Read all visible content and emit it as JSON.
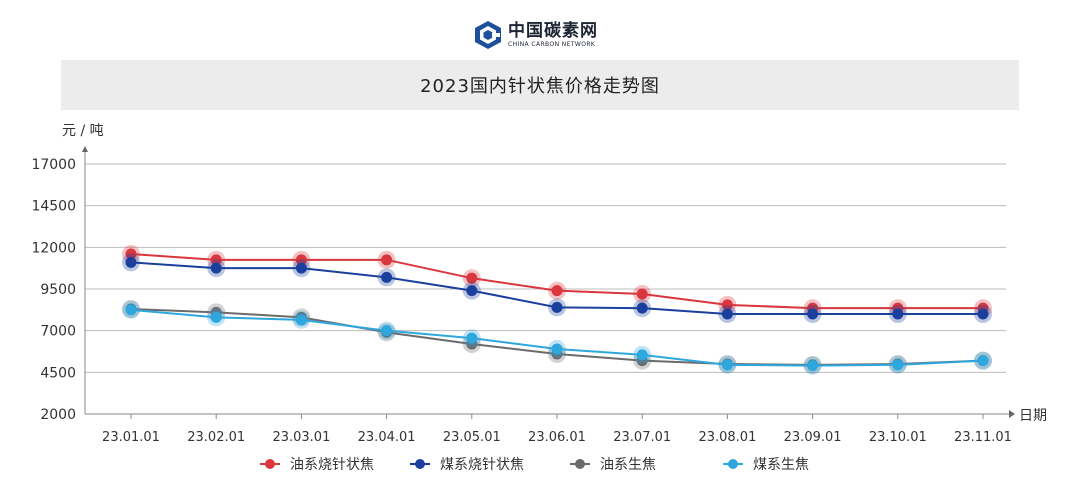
{
  "logo": {
    "name_cn": "中国碳素网",
    "name_en": "CHINA CARBON NETWORK"
  },
  "chart_data": {
    "type": "line",
    "title": "2023国内针状焦价格走势图",
    "ylabel": "元 / 吨",
    "xlabel": "日期",
    "ylim": [
      2000,
      17000
    ],
    "yticks": [
      2000,
      4500,
      7000,
      9500,
      12000,
      14500,
      17000
    ],
    "categories": [
      "23.01.01",
      "23.02.01",
      "23.03.01",
      "23.04.01",
      "23.05.01",
      "23.06.01",
      "23.07.01",
      "23.08.01",
      "23.09.01",
      "23.10.01",
      "23.11.01"
    ],
    "grid": true,
    "legend_position": "bottom",
    "series": [
      {
        "name": "油系烧针状焦",
        "color": "#d9363e",
        "values": [
          11600,
          11250,
          11250,
          11250,
          10150,
          9400,
          9200,
          8550,
          8350,
          8350,
          8350
        ]
      },
      {
        "name": "煤系烧针状焦",
        "color": "#1b3f9c",
        "values": [
          11100,
          10750,
          10750,
          10200,
          9400,
          8400,
          8350,
          8000,
          8000,
          8000,
          8000
        ]
      },
      {
        "name": "油系生焦",
        "color": "#6b6b6b",
        "values": [
          8300,
          8100,
          7800,
          6900,
          6200,
          5600,
          5200,
          5000,
          4950,
          5000,
          5200
        ]
      },
      {
        "name": "煤系生焦",
        "color": "#2ea7df",
        "values": [
          8250,
          7800,
          7650,
          7000,
          6550,
          5900,
          5550,
          4950,
          4900,
          4950,
          5200
        ]
      }
    ]
  }
}
